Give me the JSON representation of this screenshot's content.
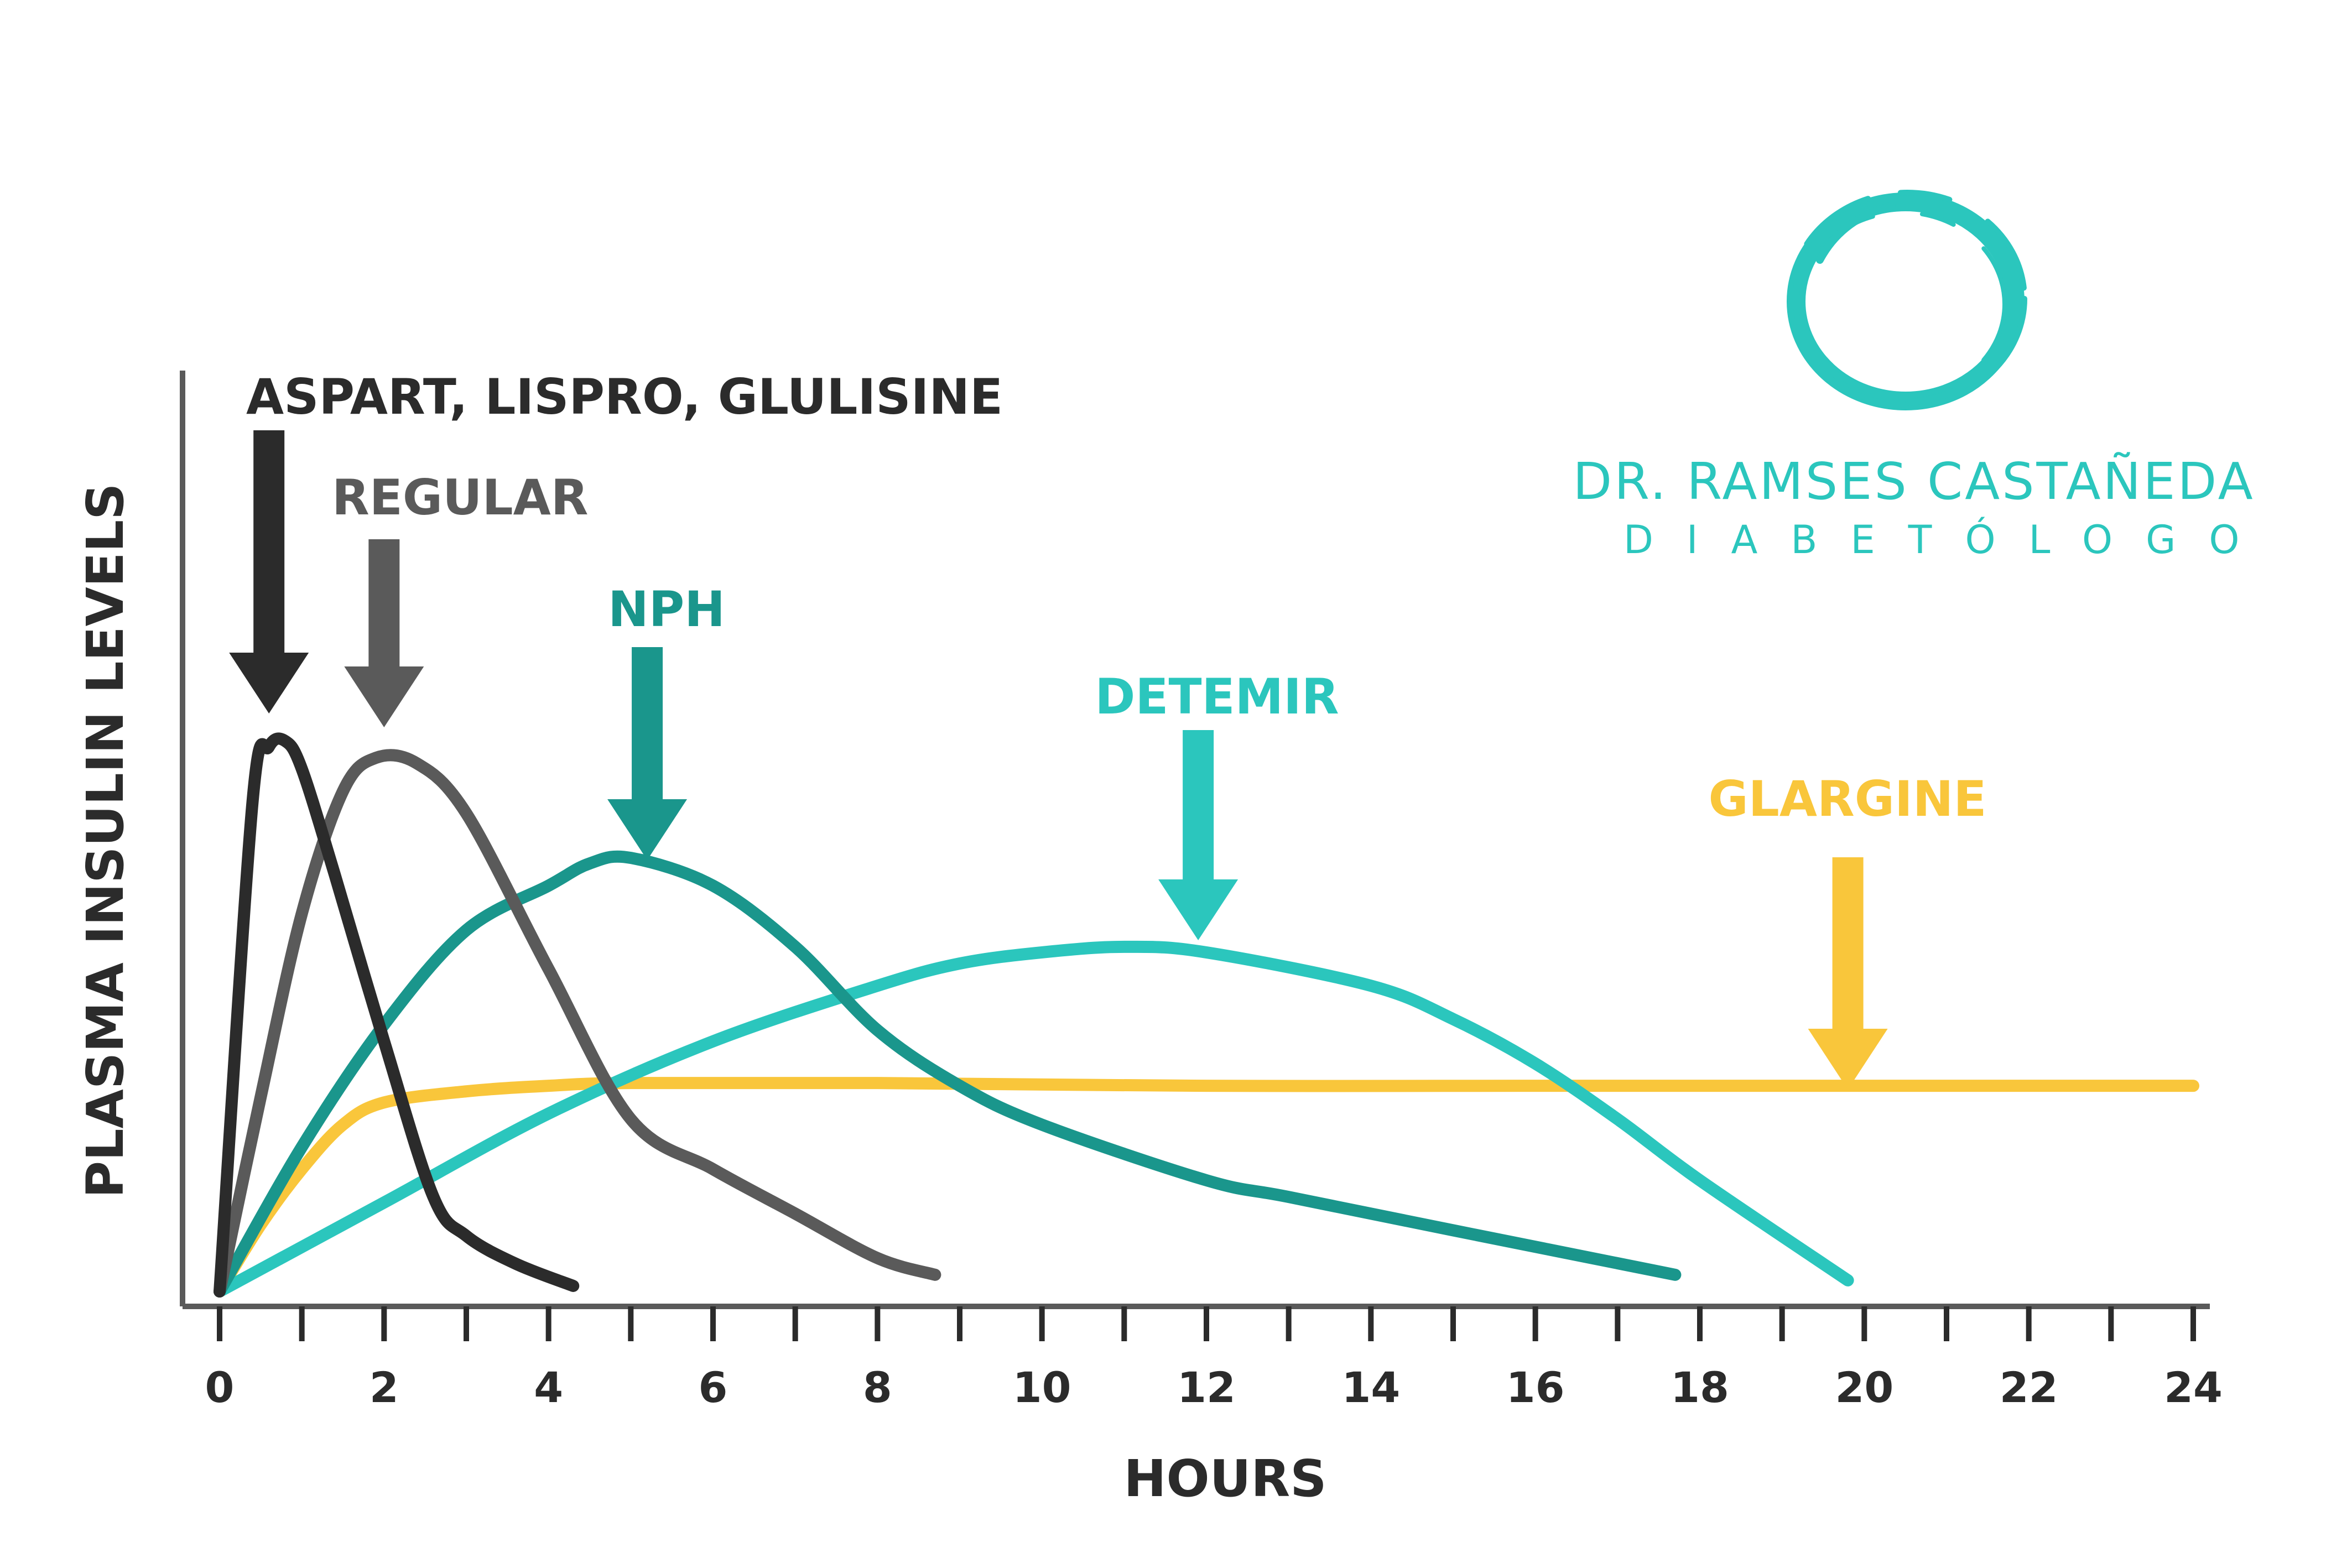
{
  "chart_data": {
    "type": "line",
    "title": "",
    "xlabel": "HOURS",
    "ylabel": "PLASMA INSULIN LEVELS",
    "xlim": [
      0,
      24
    ],
    "ylim": [
      0,
      1
    ],
    "x_ticks": [
      0,
      2,
      4,
      6,
      8,
      10,
      12,
      14,
      16,
      18,
      20,
      22,
      24
    ],
    "x_tick_labels": [
      "0",
      "2",
      "4",
      "6",
      "8",
      "10",
      "12",
      "14",
      "16",
      "18",
      "20",
      "22",
      "24"
    ],
    "grid": false,
    "legend": "none",
    "series": [
      {
        "name": "ASPART, LISPRO, GLULISINE",
        "color": "#2b2b2b",
        "x": [
          0,
          0.4,
          0.6,
          0.8,
          1.0,
          1.4,
          2.0,
          2.6,
          3.0,
          3.6,
          4.3
        ],
        "y": [
          0,
          0.88,
          0.98,
          0.99,
          0.94,
          0.75,
          0.45,
          0.17,
          0.1,
          0.05,
          0.01
        ]
      },
      {
        "name": "REGULAR",
        "color": "#5a5a5a",
        "x": [
          0,
          0.5,
          1.0,
          1.5,
          1.9,
          2.4,
          3.0,
          4.0,
          5.0,
          6.0,
          7.0,
          8.0,
          8.7
        ],
        "y": [
          0,
          0.35,
          0.68,
          0.9,
          0.96,
          0.95,
          0.86,
          0.58,
          0.31,
          0.22,
          0.14,
          0.06,
          0.03
        ]
      },
      {
        "name": "NPH",
        "color": "#1a968c",
        "x": [
          0,
          1,
          2,
          3,
          4,
          4.5,
          5.0,
          6.0,
          7.0,
          8.0,
          9.0,
          10,
          12,
          13,
          15,
          17.7
        ],
        "y": [
          0,
          0.26,
          0.48,
          0.65,
          0.73,
          0.77,
          0.78,
          0.73,
          0.62,
          0.47,
          0.37,
          0.3,
          0.2,
          0.17,
          0.11,
          0.03
        ]
      },
      {
        "name": "DETEMIR",
        "color": "#2bc6bd",
        "x": [
          0,
          2,
          4,
          6,
          8,
          9,
          10,
          11,
          12,
          14,
          15,
          16,
          17,
          18,
          19.8
        ],
        "y": [
          0,
          0.16,
          0.32,
          0.45,
          0.55,
          0.59,
          0.61,
          0.62,
          0.61,
          0.55,
          0.49,
          0.41,
          0.31,
          0.2,
          0.02
        ]
      },
      {
        "name": "GLARGINE",
        "color": "#f9c63b",
        "x": [
          0,
          0.5,
          1.0,
          1.5,
          2.0,
          3.0,
          4.0,
          5.0,
          8.0,
          12.0,
          16.0,
          20.0,
          24.0
        ],
        "y": [
          0,
          0.12,
          0.22,
          0.3,
          0.34,
          0.36,
          0.37,
          0.375,
          0.375,
          0.37,
          0.37,
          0.37,
          0.37
        ]
      }
    ],
    "peak_arrows_x": [
      0.6,
      2.0,
      5.2,
      11.9,
      19.8
    ]
  },
  "brand": {
    "name": "DR. RAMSES CASTAÑEDA",
    "subtitle": "DIABETÓLOGO",
    "logo_icon": "brushstroke-circle-logo-icon",
    "color": "#2bc6bd"
  }
}
